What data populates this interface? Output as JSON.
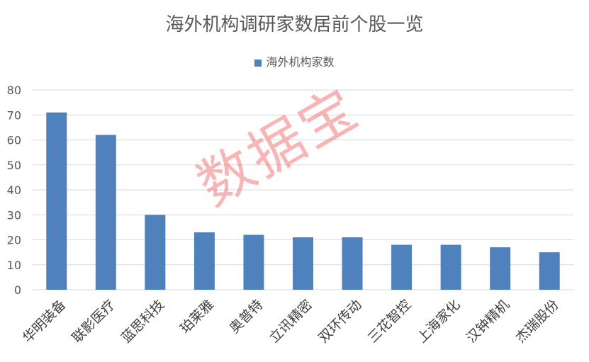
{
  "chart_data": {
    "type": "bar",
    "title": "海外机构调研家数居前个股一览",
    "categories": [
      "华明装备",
      "联影医疗",
      "蓝思科技",
      "珀莱雅",
      "奥普特",
      "立讯精密",
      "双环传动",
      "三花智控",
      "上海家化",
      "汉钟精机",
      "杰瑞股份"
    ],
    "series": [
      {
        "name": "海外机构家数",
        "values": [
          71,
          62,
          30,
          23,
          22,
          21,
          21,
          18,
          18,
          17,
          15
        ],
        "color": "#4f81bd"
      }
    ],
    "xlabel": "",
    "ylabel": "",
    "ylim": [
      0,
      80
    ],
    "yticks": [
      0,
      10,
      20,
      30,
      40,
      50,
      60,
      70,
      80
    ],
    "grid": true,
    "legend": "top"
  },
  "watermark": "数据宝"
}
